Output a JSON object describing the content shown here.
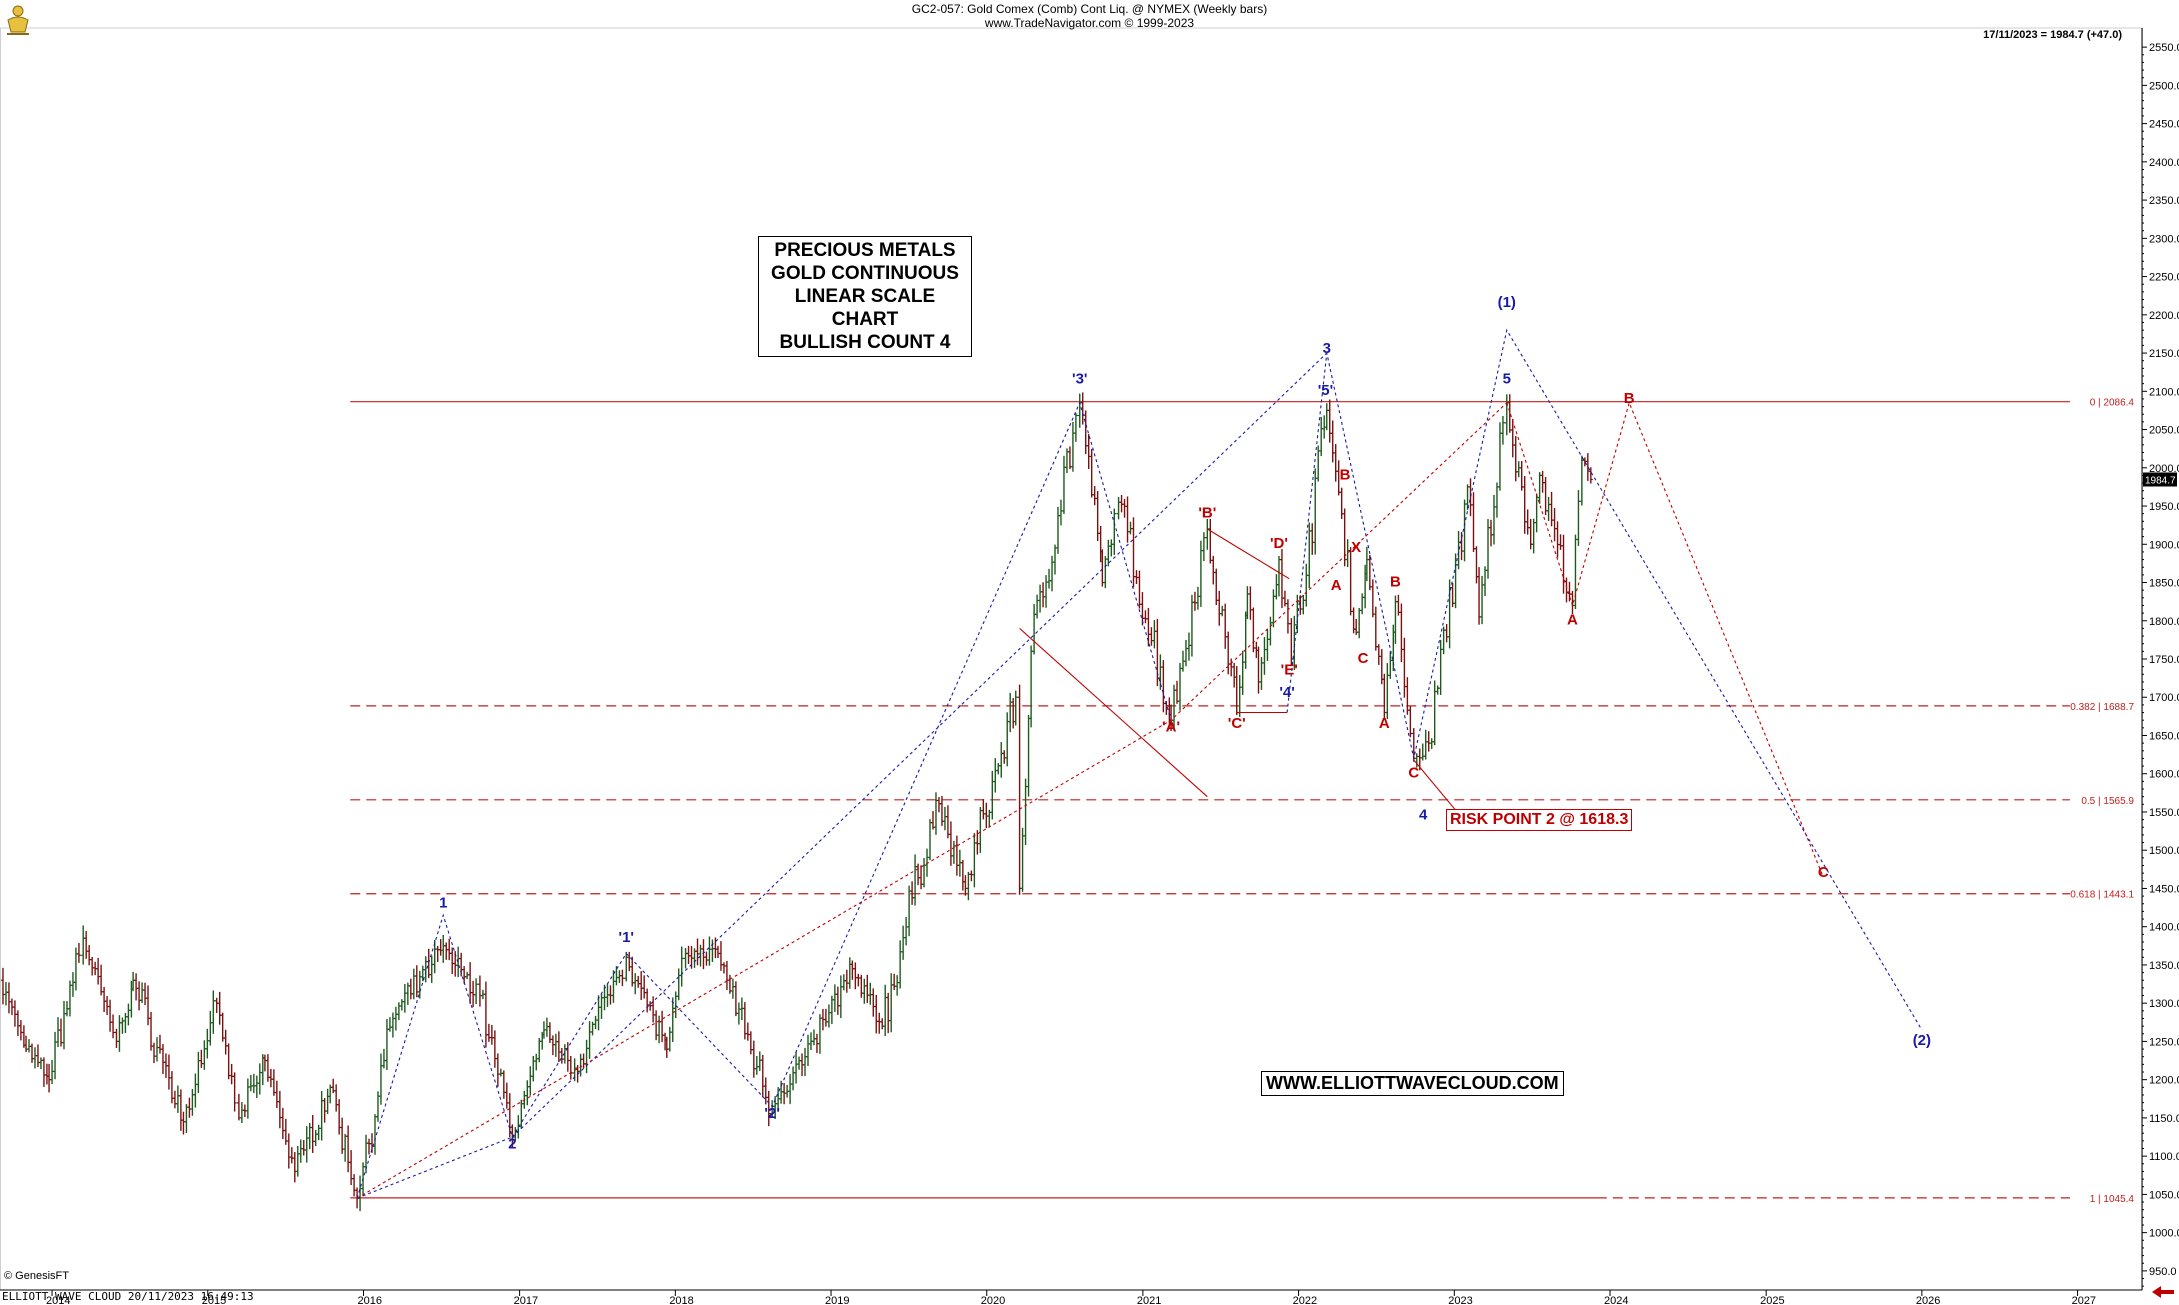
{
  "header": {
    "line1": "GC2-057:  Gold Comex (Comb) Cont Liq. @ NYMEX  (Weekly bars)",
    "line2": "www.TradeNavigator.com © 1999-2023",
    "last_quote": "17/11/2023 = 1984.7 (+47.0)"
  },
  "footer": {
    "copyright": "© GenesisFT",
    "status": "ELLIOTT WAVE CLOUD   20/11/2023 16:49:13"
  },
  "annotations": {
    "title_lines": [
      "PRECIOUS METALS",
      "GOLD CONTINUOUS",
      "LINEAR SCALE CHART",
      "BULLISH COUNT 4"
    ],
    "website": "WWW.ELLIOTTWAVECLOUD.COM",
    "risk_point": "RISK POINT 2 @ 1618.3"
  },
  "colors": {
    "up_bar": "#1e5a1e",
    "down_bar": "#7a1010",
    "blue_wave": "#1a1aa8",
    "red_wave": "#c00000",
    "fib_line": "#c02020"
  },
  "chart_data": {
    "type": "line",
    "title": "GC2-057:  Gold Comex (Comb) Cont Liq. @ NYMEX  (Weekly bars)",
    "xlabel": "",
    "ylabel": "",
    "x_axis": {
      "type": "date",
      "ticks": [
        "2014",
        "2015",
        "2016",
        "2017",
        "2018",
        "2019",
        "2020",
        "2021",
        "2022",
        "2023",
        "2024",
        "2025",
        "2026",
        "2027"
      ],
      "range": [
        "2013-09-01",
        "2027-06-01"
      ]
    },
    "y_axis": {
      "scale": "linear",
      "range": [
        925,
        2575
      ],
      "ticks": [
        950,
        1000,
        1050,
        1100,
        1150,
        1200,
        1250,
        1300,
        1350,
        1400,
        1450,
        1500,
        1550,
        1600,
        1650,
        1700,
        1750,
        1800,
        1850,
        1900,
        1950,
        2000,
        2050,
        2100,
        2150,
        2200,
        2250,
        2300,
        2350,
        2400,
        2450,
        2500,
        2550
      ],
      "tick_labels": [
        "950.0",
        "1000.0",
        "1050.0",
        "1100.0",
        "1150.0",
        "1200.0",
        "1250.0",
        "1300.0",
        "1350.0",
        "1400.0",
        "1450.0",
        "1500.0",
        "1550.0",
        "1600.0",
        "1650.0",
        "1700.0",
        "1750.0",
        "1800.0",
        "1850.0",
        "1900.0",
        "1950.0",
        "2000.0",
        "2050.0",
        "2100.0",
        "2150.0",
        "2200.0",
        "2250.0",
        "2300.0",
        "2350.0",
        "2400.0",
        "2450.0",
        "2500.0",
        "2550.0"
      ]
    },
    "grid": false,
    "last_value_label": "1984.7",
    "series": [
      {
        "name": "",
        "style": "weekly-bars",
        "points": [
          [
            "2013-09-01",
            1330
          ],
          [
            "2013-11-01",
            1240
          ],
          [
            "2013-12-25",
            1200
          ],
          [
            "2014-03-15",
            1385
          ],
          [
            "2014-06-01",
            1250
          ],
          [
            "2014-07-10",
            1330
          ],
          [
            "2014-11-05",
            1145
          ],
          [
            "2015-01-22",
            1300
          ],
          [
            "2015-03-15",
            1150
          ],
          [
            "2015-05-15",
            1225
          ],
          [
            "2015-07-24",
            1080
          ],
          [
            "2015-10-15",
            1190
          ],
          [
            "2015-12-17",
            1045
          ],
          [
            "2016-03-10",
            1280
          ],
          [
            "2016-07-06",
            1375
          ],
          [
            "2016-09-30",
            1310
          ],
          [
            "2016-12-15",
            1125
          ],
          [
            "2017-02-27",
            1265
          ],
          [
            "2017-05-10",
            1215
          ],
          [
            "2017-09-08",
            1360
          ],
          [
            "2017-12-12",
            1240
          ],
          [
            "2018-01-25",
            1365
          ],
          [
            "2018-04-11",
            1365
          ],
          [
            "2018-08-16",
            1165
          ],
          [
            "2018-11-01",
            1230
          ],
          [
            "2019-02-20",
            1345
          ],
          [
            "2019-05-01",
            1270
          ],
          [
            "2019-09-04",
            1565
          ],
          [
            "2019-11-12",
            1450
          ],
          [
            "2020-03-09",
            1700
          ],
          [
            "2020-03-18",
            1450
          ],
          [
            "2020-04-14",
            1760
          ],
          [
            "2020-08-06",
            2085
          ],
          [
            "2020-09-28",
            1850
          ],
          [
            "2020-11-05",
            1955
          ],
          [
            "2021-03-08",
            1670
          ],
          [
            "2021-06-01",
            1920
          ],
          [
            "2021-08-09",
            1680
          ],
          [
            "2021-09-03",
            1835
          ],
          [
            "2021-09-29",
            1720
          ],
          [
            "2021-11-16",
            1880
          ],
          [
            "2021-12-15",
            1750
          ],
          [
            "2022-03-08",
            2075
          ],
          [
            "2022-05-16",
            1785
          ],
          [
            "2022-06-10",
            1880
          ],
          [
            "2022-07-21",
            1680
          ],
          [
            "2022-08-16",
            1825
          ],
          [
            "2022-09-28",
            1620
          ],
          [
            "2022-11-02",
            1640
          ],
          [
            "2023-02-01",
            1975
          ],
          [
            "2023-02-28",
            1805
          ],
          [
            "2023-05-04",
            2085
          ],
          [
            "2023-06-29",
            1900
          ],
          [
            "2023-07-20",
            1990
          ],
          [
            "2023-10-05",
            1820
          ],
          [
            "2023-10-27",
            2010
          ],
          [
            "2023-11-17",
            1984.7
          ]
        ]
      }
    ],
    "reference_lines": [
      {
        "label": "0 | 2086.4",
        "value": 2086.4,
        "style": "solid",
        "from": "2015-12-01"
      },
      {
        "label": "0.382 | 1688.7",
        "value": 1688.7,
        "style": "dashed",
        "from": "2015-12-01"
      },
      {
        "label": "0.5 | 1565.9",
        "value": 1565.9,
        "style": "dashed",
        "from": "2015-12-01"
      },
      {
        "label": "0.618 | 1443.1",
        "value": 1443.1,
        "style": "dashed",
        "from": "2015-12-01"
      },
      {
        "label": "1 | 1045.4",
        "value": 1045.4,
        "style": "solid-then-dashed",
        "from": "2015-12-01"
      }
    ],
    "wave_labels": [
      {
        "text": "1",
        "x": "2016-07-06",
        "y": 1425,
        "color": "blue"
      },
      {
        "text": "2",
        "x": "2016-12-15",
        "y": 1110,
        "color": "blue"
      },
      {
        "text": "'1'",
        "x": "2017-09-08",
        "y": 1380,
        "color": "blue"
      },
      {
        "text": "'2'",
        "x": "2018-08-16",
        "y": 1150,
        "color": "blue"
      },
      {
        "text": "'3'",
        "x": "2020-08-06",
        "y": 2110,
        "color": "blue"
      },
      {
        "text": "'A'",
        "x": "2021-03-08",
        "y": 1655,
        "color": "red"
      },
      {
        "text": "'B'",
        "x": "2021-06-01",
        "y": 1935,
        "color": "red"
      },
      {
        "text": "'C'",
        "x": "2021-08-09",
        "y": 1660,
        "color": "red"
      },
      {
        "text": "'D'",
        "x": "2021-11-16",
        "y": 1895,
        "color": "red"
      },
      {
        "text": "'E'",
        "x": "2021-12-10",
        "y": 1730,
        "color": "red"
      },
      {
        "text": "'4'",
        "x": "2021-12-05",
        "y": 1700,
        "color": "blue"
      },
      {
        "text": "'5'",
        "x": "2022-03-05",
        "y": 2095,
        "color": "blue"
      },
      {
        "text": "3",
        "x": "2022-03-08",
        "y": 2150,
        "color": "blue"
      },
      {
        "text": "A",
        "x": "2022-03-30",
        "y": 1840,
        "color": "red"
      },
      {
        "text": "B",
        "x": "2022-04-20",
        "y": 1985,
        "color": "red"
      },
      {
        "text": "X",
        "x": "2022-05-16",
        "y": 1890,
        "color": "red"
      },
      {
        "text": "C",
        "x": "2022-06-01",
        "y": 1745,
        "color": "red"
      },
      {
        "text": "B",
        "x": "2022-08-16",
        "y": 1845,
        "color": "red"
      },
      {
        "text": "A",
        "x": "2022-07-21",
        "y": 1660,
        "color": "red"
      },
      {
        "text": "C",
        "x": "2022-09-28",
        "y": 1595,
        "color": "red"
      },
      {
        "text": "4",
        "x": "2022-10-20",
        "y": 1540,
        "color": "blue"
      },
      {
        "text": "(1)",
        "x": "2023-05-04",
        "y": 2210,
        "color": "blue"
      },
      {
        "text": "5",
        "x": "2023-05-04",
        "y": 2110,
        "color": "blue"
      },
      {
        "text": "A",
        "x": "2023-10-05",
        "y": 1795,
        "color": "red"
      },
      {
        "text": "B",
        "x": "2024-02-15",
        "y": 2085,
        "color": "red"
      },
      {
        "text": "C",
        "x": "2025-05-15",
        "y": 1465,
        "color": "red"
      },
      {
        "text": "(2)",
        "x": "2026-01-01",
        "y": 1245,
        "color": "blue"
      }
    ]
  }
}
